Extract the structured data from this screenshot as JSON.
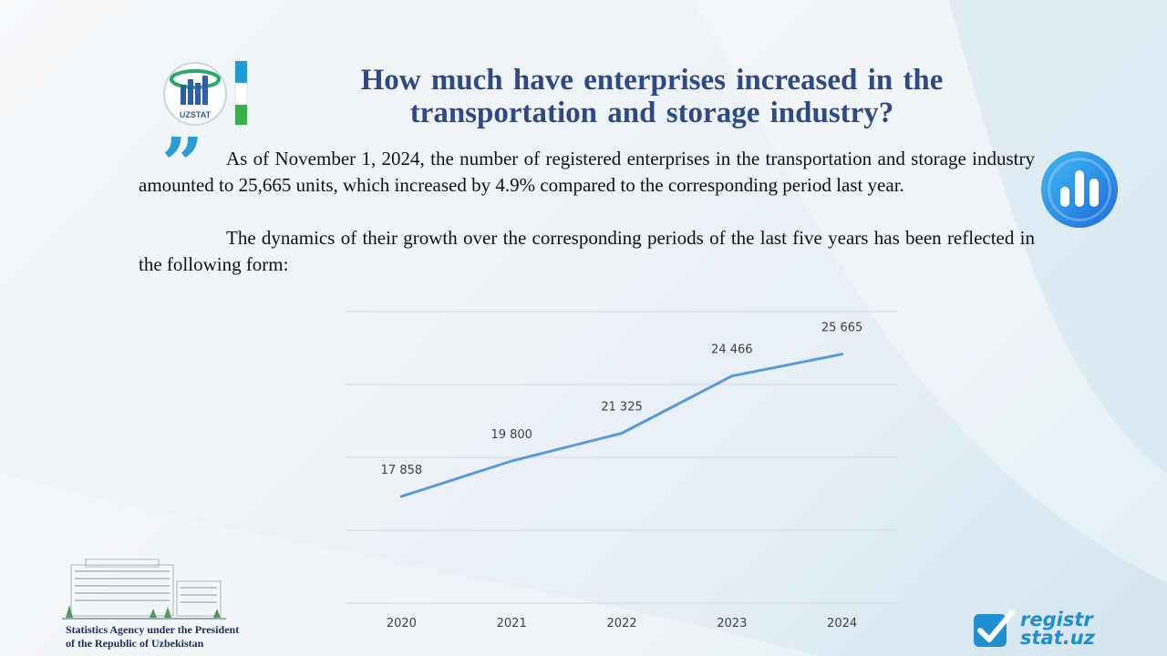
{
  "header": {
    "title": "How much have enterprises increased in the transportation and storage industry?",
    "logo_text": "UZSTAT"
  },
  "body": {
    "paragraph1": "As of November 1, 2024, the number of registered enterprises in the transportation and storage industry amounted to 25,665 units, which increased by 4.9% compared to the corresponding period last year.",
    "paragraph2": "The dynamics of their growth over the corresponding periods of the last five years has been reflected in the following form:"
  },
  "footer": {
    "agency_line1": "Statistics Agency under the President",
    "agency_line2": "of the Republic of Uzbekistan",
    "brand_line1": "registr",
    "brand_line2": "stat.uz"
  },
  "icons": {
    "quote": "quote-icon",
    "chart": "bar-chart-icon",
    "check": "check-icon"
  },
  "colors": {
    "title": "#2e4a86",
    "line": "#5b9bd5",
    "accent": "#2d9bd4"
  },
  "chart_data": {
    "type": "line",
    "categories": [
      "2020",
      "2021",
      "2022",
      "2023",
      "2024"
    ],
    "values": [
      17858,
      19800,
      21325,
      24466,
      25665
    ],
    "labels": [
      "17 858",
      "19 800",
      "21 325",
      "24 466",
      "25 665"
    ],
    "title": "",
    "xlabel": "",
    "ylabel": "",
    "ylim": [
      12000,
      28000
    ],
    "grid": true
  }
}
